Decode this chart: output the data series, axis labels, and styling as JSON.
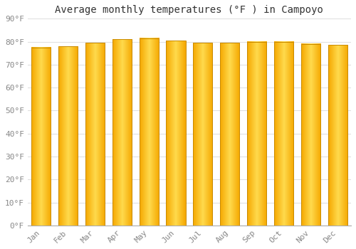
{
  "title": "Average monthly temperatures (°F ) in Campoyo",
  "months": [
    "Jan",
    "Feb",
    "Mar",
    "Apr",
    "May",
    "Jun",
    "Jul",
    "Aug",
    "Sep",
    "Oct",
    "Nov",
    "Dec"
  ],
  "values": [
    77.5,
    78.0,
    79.5,
    81.0,
    81.5,
    80.5,
    79.5,
    79.5,
    80.0,
    80.0,
    79.0,
    78.5
  ],
  "ylim": [
    0,
    90
  ],
  "yticks": [
    0,
    10,
    20,
    30,
    40,
    50,
    60,
    70,
    80,
    90
  ],
  "ytick_labels": [
    "0°F",
    "10°F",
    "20°F",
    "30°F",
    "40°F",
    "50°F",
    "60°F",
    "70°F",
    "80°F",
    "90°F"
  ],
  "bar_color_dark": "#F5A800",
  "bar_color_light": "#FFD84D",
  "bar_edge_color": "#C98B00",
  "background_color": "#FFFFFF",
  "plot_bg_color": "#FFFFFF",
  "grid_color": "#E0E0E0",
  "title_fontsize": 10,
  "tick_fontsize": 8,
  "font_family": "monospace"
}
